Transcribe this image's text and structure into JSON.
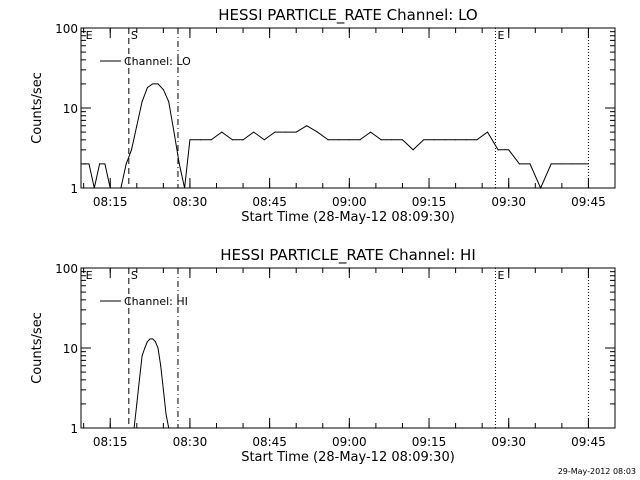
{
  "footer": {
    "date": "29-May-2012 08:03"
  },
  "chart_data": [
    {
      "type": "line",
      "title": "HESSI PARTICLE_RATE Channel: LO",
      "xlabel": "Start Time (28-May-12 08:09:30)",
      "ylabel": "Counts/sec",
      "y_scale": "log",
      "ylim": [
        1,
        100
      ],
      "xlim": [
        "08:09:30",
        "09:50:00"
      ],
      "y_ticks": [
        "1",
        "10",
        "100"
      ],
      "x_ticks": [
        "08:15",
        "08:30",
        "08:45",
        "09:00",
        "09:15",
        "09:30",
        "09:45"
      ],
      "legend": {
        "label": "Channel: LO",
        "position": "top-left"
      },
      "markers": [
        {
          "label": "E",
          "time": "08:10:00",
          "style": "none"
        },
        {
          "label": "S",
          "time": "08:18:30",
          "style": "dashed"
        },
        {
          "label": "",
          "time": "08:27:45",
          "style": "dash-dot"
        },
        {
          "label": "E",
          "time": "09:27:30",
          "style": "dotted"
        },
        {
          "label": "",
          "time": "09:45:00",
          "style": "dotted"
        }
      ],
      "series": [
        {
          "name": "Channel: LO",
          "x": [
            "08:10:00",
            "08:11:00",
            "08:12:00",
            "08:13:00",
            "08:14:00",
            "08:15:00",
            "08:16:00",
            "08:17:00",
            "08:18:00",
            "08:19:00",
            "08:20:00",
            "08:21:00",
            "08:22:00",
            "08:23:00",
            "08:24:00",
            "08:25:00",
            "08:26:00",
            "08:27:00",
            "08:28:00",
            "08:29:00",
            "08:30:00",
            "08:32:00",
            "08:34:00",
            "08:36:00",
            "08:38:00",
            "08:40:00",
            "08:42:00",
            "08:44:00",
            "08:46:00",
            "08:48:00",
            "08:50:00",
            "08:52:00",
            "08:54:00",
            "08:56:00",
            "08:58:00",
            "09:00:00",
            "09:02:00",
            "09:04:00",
            "09:06:00",
            "09:08:00",
            "09:10:00",
            "09:12:00",
            "09:14:00",
            "09:16:00",
            "09:18:00",
            "09:20:00",
            "09:22:00",
            "09:24:00",
            "09:26:00",
            "09:28:00",
            "09:30:00",
            "09:32:00",
            "09:34:00",
            "09:36:00",
            "09:38:00",
            "09:40:00",
            "09:42:00",
            "09:45:00"
          ],
          "y": [
            2,
            2,
            1,
            2,
            2,
            1,
            1,
            1,
            2,
            3,
            6,
            12,
            18,
            20,
            20,
            17,
            12,
            5,
            2,
            1,
            4,
            4,
            4,
            5,
            4,
            4,
            5,
            4,
            5,
            5,
            5,
            6,
            5,
            4,
            4,
            4,
            4,
            5,
            4,
            4,
            4,
            3,
            4,
            4,
            4,
            4,
            4,
            4,
            5,
            3,
            3,
            2,
            2,
            1,
            2,
            2,
            2,
            2
          ]
        }
      ]
    },
    {
      "type": "line",
      "title": "HESSI PARTICLE_RATE Channel: HI",
      "xlabel": "Start Time (28-May-12 08:09:30)",
      "ylabel": "Counts/sec",
      "y_scale": "log",
      "ylim": [
        1,
        100
      ],
      "xlim": [
        "08:09:30",
        "09:50:00"
      ],
      "y_ticks": [
        "1",
        "10",
        "100"
      ],
      "x_ticks": [
        "08:15",
        "08:30",
        "08:45",
        "09:00",
        "09:15",
        "09:30",
        "09:45"
      ],
      "legend": {
        "label": "Channel: HI",
        "position": "top-left"
      },
      "markers": [
        {
          "label": "E",
          "time": "08:10:00",
          "style": "none"
        },
        {
          "label": "S",
          "time": "08:18:30",
          "style": "dashed"
        },
        {
          "label": "",
          "time": "08:27:45",
          "style": "dash-dot"
        },
        {
          "label": "E",
          "time": "09:27:30",
          "style": "dotted"
        },
        {
          "label": "",
          "time": "09:45:00",
          "style": "dotted"
        }
      ],
      "series": [
        {
          "name": "Channel: HI",
          "x": [
            "08:19:30",
            "08:20:00",
            "08:20:30",
            "08:21:00",
            "08:21:30",
            "08:22:00",
            "08:22:30",
            "08:23:00",
            "08:23:30",
            "08:24:00",
            "08:24:30",
            "08:25:00",
            "08:25:30",
            "08:26:00"
          ],
          "y": [
            1,
            2,
            4,
            8,
            10,
            12,
            13,
            13,
            12,
            10,
            6,
            3,
            1.5,
            1
          ]
        }
      ]
    }
  ]
}
